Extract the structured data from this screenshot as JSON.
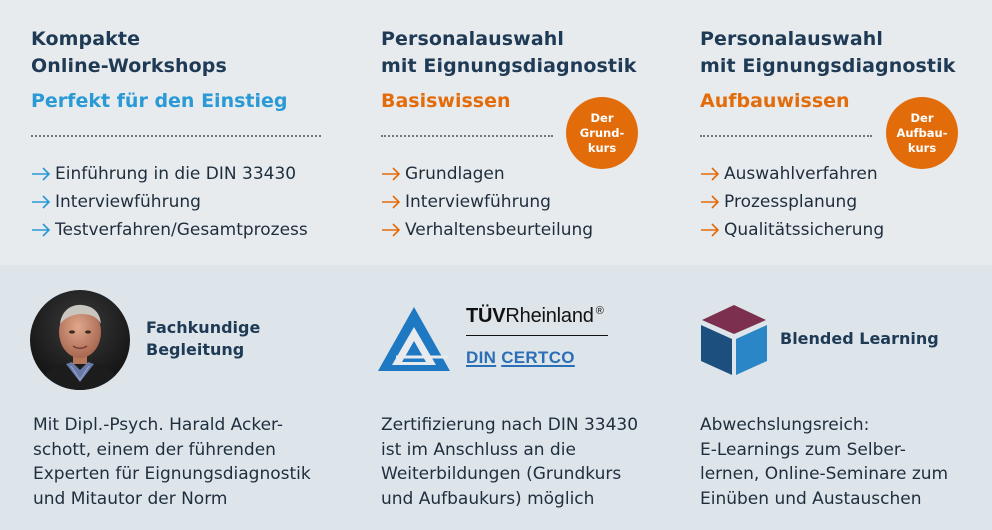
{
  "colors": {
    "blue_accent": "#2a9ad6",
    "orange_accent": "#e36c0a",
    "title_dark": "#1f3a55",
    "top_bg": "#e7ebee",
    "bottom_bg": "#dde4ea"
  },
  "courses": [
    {
      "title_lines": [
        "Kompakte",
        "Online-Workshops"
      ],
      "subtitle": "Perfekt für den Einstieg",
      "arrow_icon": "arrow-right-icon",
      "items": [
        "Einführung in die DIN 33430",
        "Interviewführung",
        "Testverfahren/Gesamtprozess"
      ]
    },
    {
      "title_lines": [
        "Personalauswahl",
        "mit Eignungsdiagnostik"
      ],
      "subtitle": "Basiswissen",
      "badge_lines": [
        "Der",
        "Grund-",
        "kurs"
      ],
      "arrow_icon": "arrow-right-icon",
      "items": [
        "Grundlagen",
        "Interviewführung",
        "Verhaltensbeurteilung"
      ]
    },
    {
      "title_lines": [
        "Personalauswahl",
        "mit Eignungsdiagnostik"
      ],
      "subtitle": "Aufbauwissen",
      "badge_lines": [
        "Der",
        "Aufbau-",
        "kurs"
      ],
      "arrow_icon": "arrow-right-icon",
      "items": [
        "Auswahlverfahren",
        "Prozessplanung",
        "Qualitätssicherung"
      ]
    }
  ],
  "features": [
    {
      "icon": "portrait-photo",
      "label_lines": [
        "Fachkundige",
        "Begleitung"
      ],
      "description_lines": [
        "Mit Dipl.-Psych. Harald Acker-",
        "schott, einem der führenden",
        "Experten für Eignungsdiagnostik",
        "und Mitautor der Norm"
      ]
    },
    {
      "icon": "tuv-triangle-logo",
      "logo": {
        "tuv": "TÜV",
        "rheinland": "Rheinland",
        "registered": "®",
        "din": "DIN",
        "certco": "CERTCO"
      },
      "description_lines": [
        "Zertifizierung nach DIN 33430",
        "ist im Anschluss an die",
        "Weiterbildungen (Grundkurs",
        "und Aufbaukurs) möglich"
      ]
    },
    {
      "icon": "cube-icon",
      "label_lines": [
        "Blended Learning"
      ],
      "description_lines": [
        "Abwechslungsreich:",
        "E-Learnings zum Selber-",
        "lernen, Online-Seminare zum",
        "Einüben und Austauschen"
      ]
    }
  ]
}
